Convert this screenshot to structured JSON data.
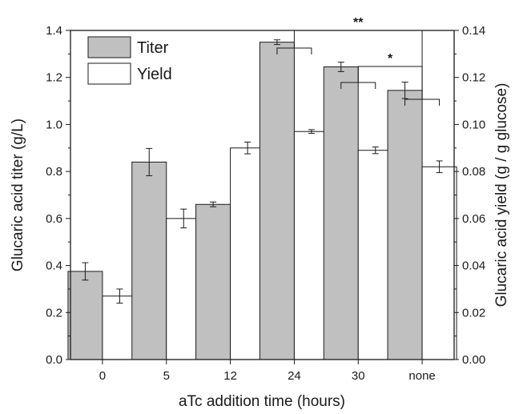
{
  "chart_data": {
    "type": "bar",
    "categories": [
      "0",
      "5",
      "12",
      "24",
      "30",
      "none"
    ],
    "series": [
      {
        "name": "Titer",
        "axis": "left",
        "color": "#c0c0c0",
        "values": [
          0.375,
          0.84,
          0.66,
          1.35,
          1.245,
          1.145
        ],
        "errors": [
          0.037,
          0.058,
          0.01,
          0.01,
          0.02,
          0.035
        ]
      },
      {
        "name": "Yield",
        "axis": "right",
        "color": "#ffffff",
        "values": [
          0.027,
          0.06,
          0.09,
          0.097,
          0.089,
          0.082
        ],
        "errors": [
          0.003,
          0.004,
          0.0025,
          0.0008,
          0.0014,
          0.0025
        ]
      }
    ],
    "xlabel": "aTc addition time (hours)",
    "ylabel": "Glucaric acid titer (g/L)",
    "y2label": "Glucaric acid yield (g / g glucose)",
    "ylim": [
      0,
      1.4
    ],
    "y2lim": [
      0,
      0.14
    ],
    "yticks": [
      "0.0",
      "0.2",
      "0.4",
      "0.6",
      "0.8",
      "1.0",
      "1.2",
      "1.4"
    ],
    "y2ticks": [
      "0.00",
      "0.02",
      "0.04",
      "0.06",
      "0.08",
      "0.10",
      "0.12",
      "0.14"
    ],
    "legend_position": "top-left",
    "grid": false,
    "significance": [
      {
        "label": "**",
        "from": "24",
        "to": "none"
      },
      {
        "label": "*",
        "from": "30",
        "to": "none"
      }
    ]
  }
}
